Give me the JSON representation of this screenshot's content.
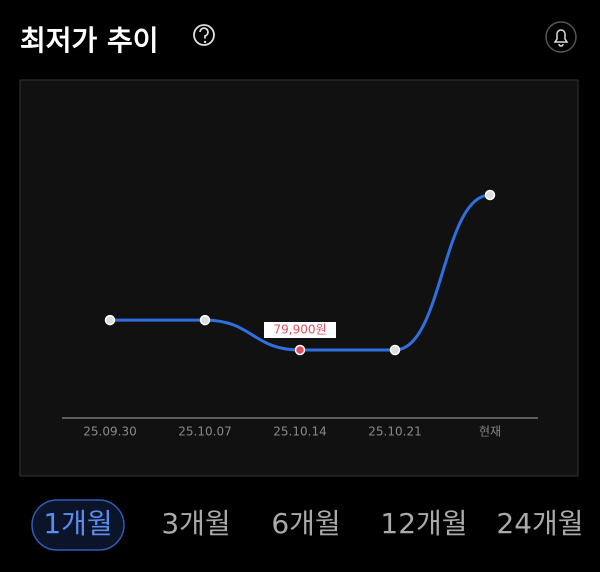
{
  "chart_data": {
    "type": "line",
    "title": "최저가 추이",
    "categories": [
      "25.09.30",
      "25.10.07",
      "25.10.14",
      "25.10.21",
      "현재"
    ],
    "values": [
      81000,
      81000,
      79900,
      79900,
      85600
    ],
    "value_labels": [
      null,
      null,
      "79,900원",
      null,
      null
    ],
    "color": "#2f6fe0"
  },
  "tabs": [
    "1개월",
    "3개월",
    "6개월",
    "12개월",
    "24개월"
  ],
  "active_tab": 0
}
